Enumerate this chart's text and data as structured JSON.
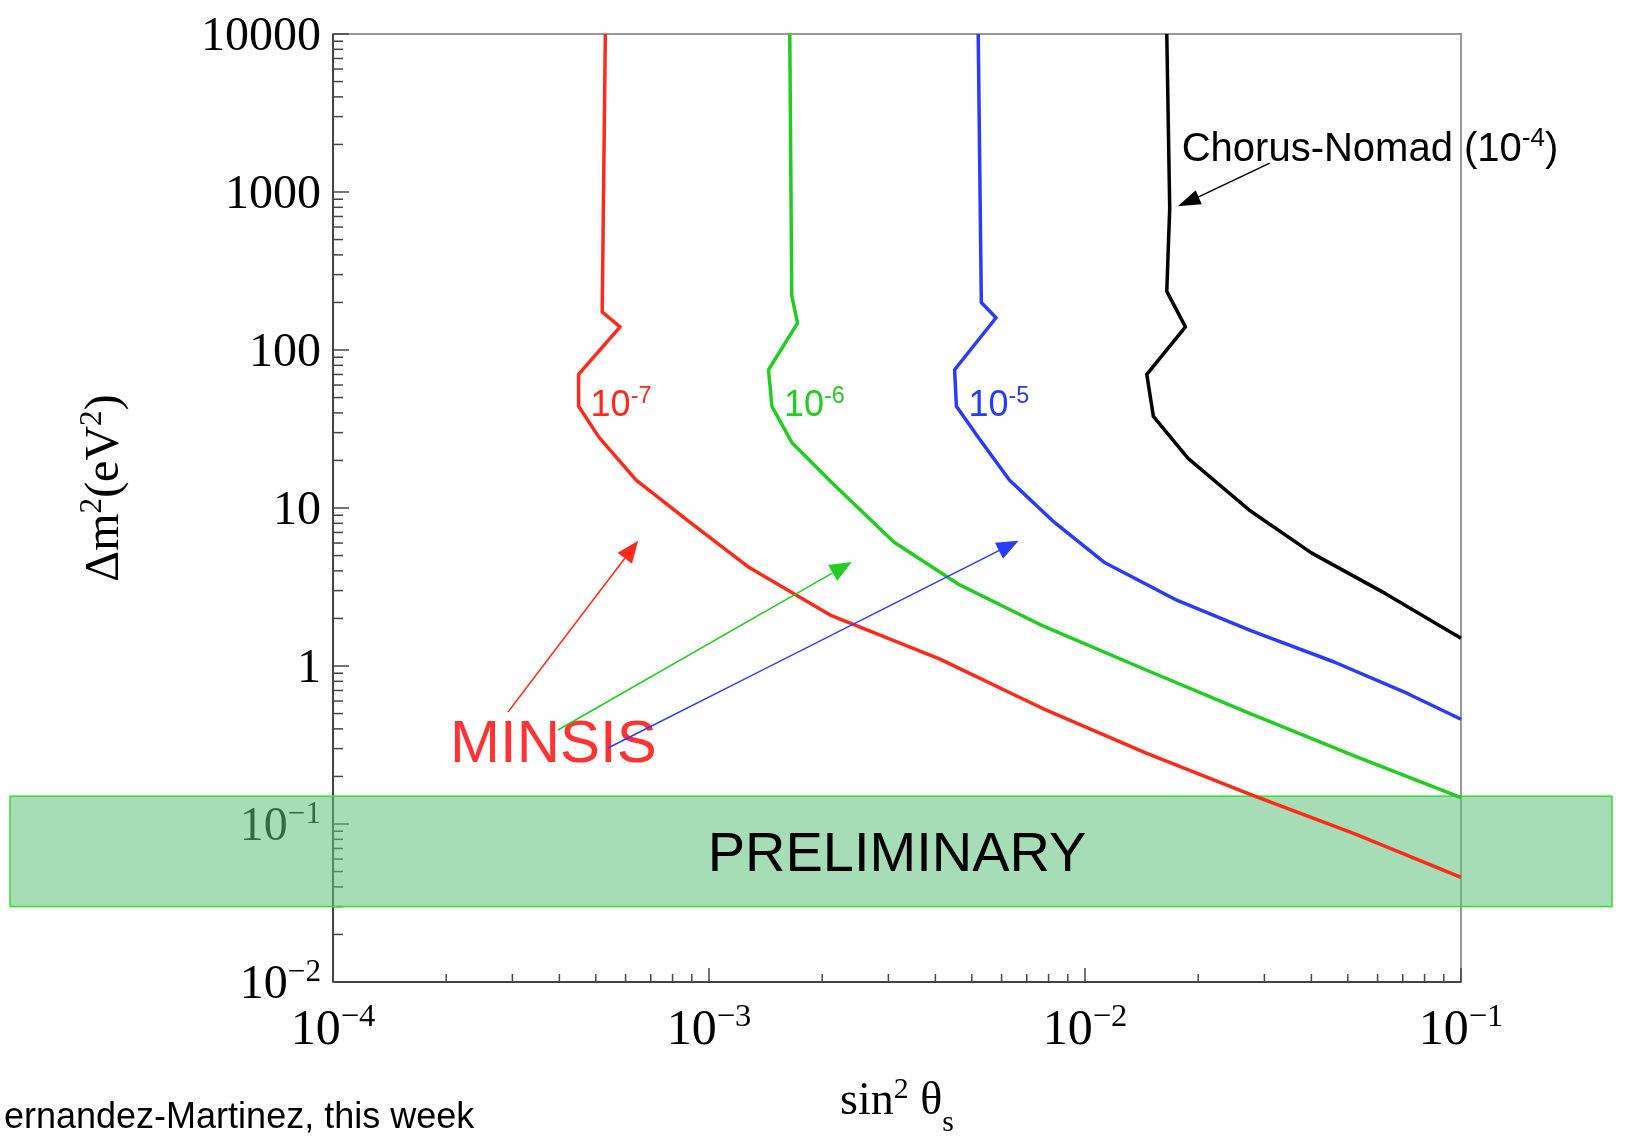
{
  "chart_data": {
    "type": "line",
    "xlabel": "sin$^{2}$ θ$_{s}$",
    "ylabel": "Δm$^{2}$(eV$^{2}$)",
    "log": "xy",
    "grid": false,
    "line_style": "solid",
    "xlim": [
      0.0001,
      0.1
    ],
    "ylim": [
      0.01,
      10000
    ],
    "xticks": [
      {
        "value": 0.0001,
        "label": "10$^{−4}$"
      },
      {
        "value": 0.0002,
        "label": null
      },
      {
        "value": 0.0003,
        "label": null
      },
      {
        "value": 0.0004,
        "label": null
      },
      {
        "value": 0.0005,
        "label": null
      },
      {
        "value": 0.0006,
        "label": null
      },
      {
        "value": 0.0007,
        "label": null
      },
      {
        "value": 0.0008,
        "label": null
      },
      {
        "value": 0.0009,
        "label": null
      },
      {
        "value": 0.001,
        "label": "10$^{−3}$"
      },
      {
        "value": 0.002,
        "label": null
      },
      {
        "value": 0.003,
        "label": null
      },
      {
        "value": 0.004,
        "label": null
      },
      {
        "value": 0.005,
        "label": null
      },
      {
        "value": 0.006,
        "label": null
      },
      {
        "value": 0.007,
        "label": null
      },
      {
        "value": 0.008,
        "label": null
      },
      {
        "value": 0.009,
        "label": null
      },
      {
        "value": 0.01,
        "label": "10$^{−2}$"
      },
      {
        "value": 0.02,
        "label": null
      },
      {
        "value": 0.03,
        "label": null
      },
      {
        "value": 0.04,
        "label": null
      },
      {
        "value": 0.05,
        "label": null
      },
      {
        "value": 0.06,
        "label": null
      },
      {
        "value": 0.07,
        "label": null
      },
      {
        "value": 0.08,
        "label": null
      },
      {
        "value": 0.09,
        "label": null
      },
      {
        "value": 0.1,
        "label": "10$^{−1}$"
      }
    ],
    "yticks": [
      {
        "value": 0.01,
        "label": "10$^{−2}$"
      },
      {
        "value": 0.02,
        "label": null
      },
      {
        "value": 0.03,
        "label": null
      },
      {
        "value": 0.04,
        "label": null
      },
      {
        "value": 0.05,
        "label": null
      },
      {
        "value": 0.06,
        "label": null
      },
      {
        "value": 0.07,
        "label": null
      },
      {
        "value": 0.08,
        "label": null
      },
      {
        "value": 0.09,
        "label": null
      },
      {
        "value": 0.1,
        "label": "10$^{−1}$"
      },
      {
        "value": 0.2,
        "label": null
      },
      {
        "value": 0.3,
        "label": null
      },
      {
        "value": 0.4,
        "label": null
      },
      {
        "value": 0.5,
        "label": null
      },
      {
        "value": 0.6,
        "label": null
      },
      {
        "value": 0.7,
        "label": null
      },
      {
        "value": 0.8,
        "label": null
      },
      {
        "value": 0.9,
        "label": null
      },
      1,
      {
        "value": 2,
        "label": null
      },
      {
        "value": 3,
        "label": null
      },
      {
        "value": 4,
        "label": null
      },
      {
        "value": 5,
        "label": null
      },
      {
        "value": 6,
        "label": null
      },
      {
        "value": 7,
        "label": null
      },
      {
        "value": 8,
        "label": null
      },
      {
        "value": 9,
        "label": null
      },
      10,
      {
        "value": 20,
        "label": null
      },
      {
        "value": 30,
        "label": null
      },
      {
        "value": 40,
        "label": null
      },
      {
        "value": 50,
        "label": null
      },
      {
        "value": 60,
        "label": null
      },
      {
        "value": 70,
        "label": null
      },
      {
        "value": 80,
        "label": null
      },
      {
        "value": 90,
        "label": null
      },
      100,
      {
        "value": 200,
        "label": null
      },
      {
        "value": 300,
        "label": null
      },
      {
        "value": 400,
        "label": null
      },
      {
        "value": 500,
        "label": null
      },
      {
        "value": 600,
        "label": null
      },
      {
        "value": 700,
        "label": null
      },
      {
        "value": 800,
        "label": null
      },
      {
        "value": 900,
        "label": null
      },
      1000,
      {
        "value": 2000,
        "label": null
      },
      {
        "value": 3000,
        "label": null
      },
      {
        "value": 4000,
        "label": null
      },
      {
        "value": 5000,
        "label": null
      },
      {
        "value": 6000,
        "label": null
      },
      {
        "value": 7000,
        "label": null
      },
      {
        "value": 8000,
        "label": null
      },
      {
        "value": 9000,
        "label": null
      },
      10000
    ],
    "series": [
      {
        "name": "10$^{-7}$",
        "color": "#ff2a1a",
        "x": [
          0.00053,
          0.00052,
          0.00058,
          0.00045,
          0.00045,
          0.00051,
          0.00064,
          0.00088,
          0.00128,
          0.0021,
          0.0041,
          0.0077,
          0.0146,
          0.0275,
          0.052,
          0.1
        ],
        "values": [
          10000,
          174,
          140,
          70,
          44,
          28,
          15,
          8.3,
          4.2,
          2.1,
          1.11,
          0.54,
          0.28,
          0.154,
          0.087,
          0.046
        ]
      },
      {
        "name": "10$^{-6}$",
        "color": "#22cc22",
        "x": [
          0.00164,
          0.00166,
          0.00172,
          0.00144,
          0.00147,
          0.00166,
          0.00214,
          0.0031,
          0.0046,
          0.0077,
          0.0146,
          0.0275,
          0.052,
          0.1
        ],
        "values": [
          10000,
          220,
          148,
          75,
          44,
          26,
          14.2,
          6.1,
          3.3,
          1.8,
          0.94,
          0.5,
          0.27,
          0.147
        ]
      },
      {
        "name": "10$^{-5}$",
        "color": "#2a3aff",
        "x": [
          0.0052,
          0.0053,
          0.0058,
          0.0045,
          0.00455,
          0.0052,
          0.0063,
          0.0082,
          0.0113,
          0.0176,
          0.0275,
          0.046,
          0.072,
          0.1
        ],
        "values": [
          10000,
          200,
          160,
          75,
          44,
          28,
          15,
          8.3,
          4.5,
          2.6,
          1.68,
          1.06,
          0.67,
          0.46
        ]
      },
      {
        "name": "Chorus-Nomad (10$^{-4}$)",
        "color": "#000000",
        "x": [
          0.0165,
          0.0168,
          0.0165,
          0.0185,
          0.0146,
          0.0152,
          0.0188,
          0.0275,
          0.04,
          0.063,
          0.1
        ],
        "values": [
          10000,
          790,
          235,
          140,
          70,
          38,
          20.6,
          9.6,
          5.2,
          2.87,
          1.5
        ]
      }
    ],
    "bands": [
      {
        "axis": "y",
        "from": 0.03,
        "to": 0.15,
        "label": "PRELIMINARY",
        "color": "#5cbf7a"
      }
    ],
    "annotations": [
      "MINSIS",
      "ernandez-Martinez, this week"
    ]
  }
}
